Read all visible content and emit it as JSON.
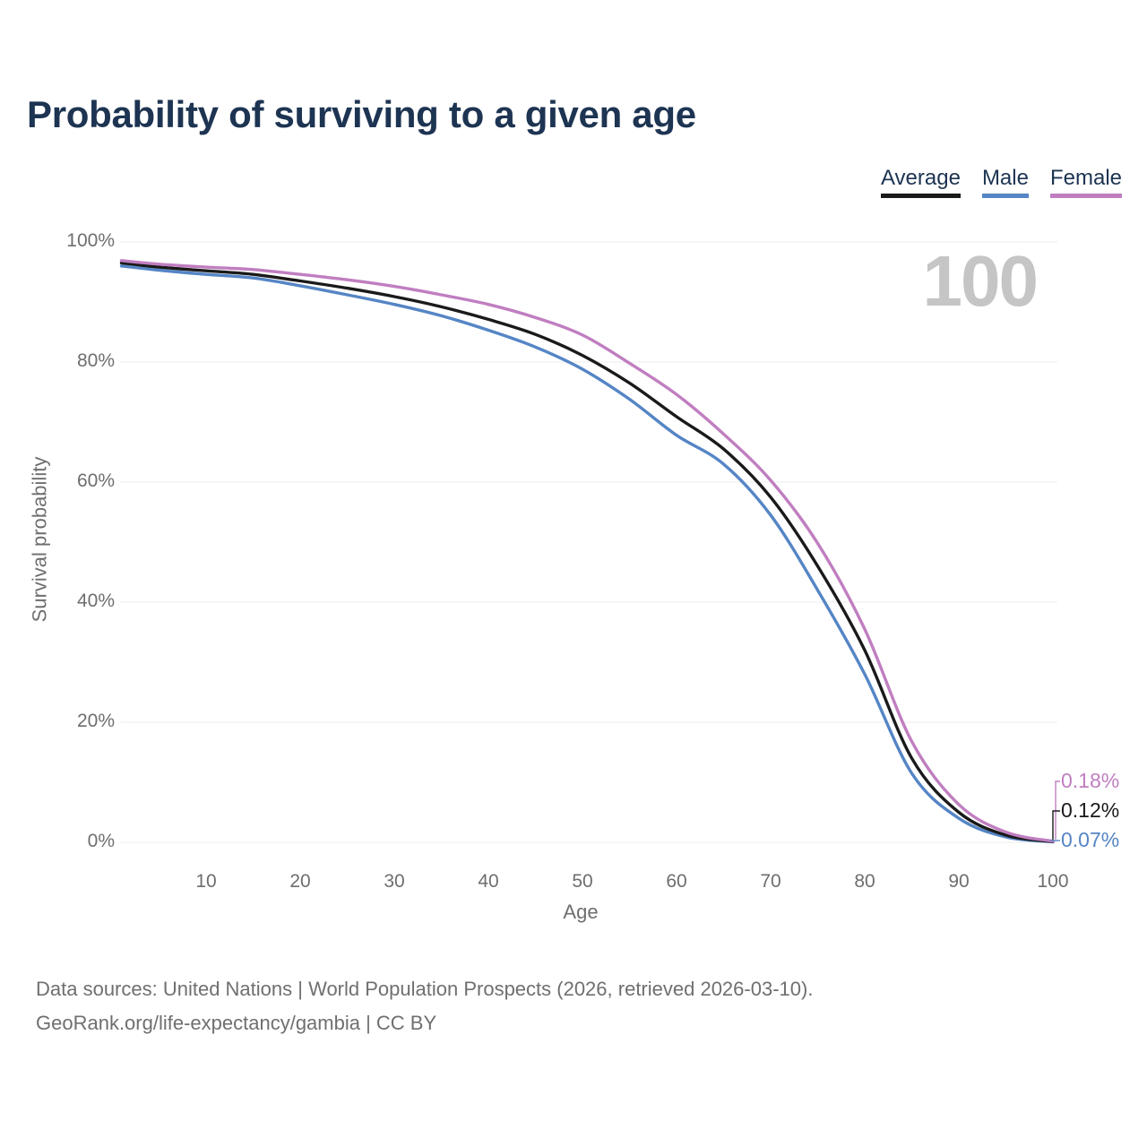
{
  "page": {
    "title": "Probability of surviving to a given age"
  },
  "legend": {
    "items": [
      {
        "label": "Average",
        "color": "#1a1a1a"
      },
      {
        "label": "Male",
        "color": "#5585c5"
      },
      {
        "label": "Female",
        "color": "#c07ec0"
      }
    ]
  },
  "corner_label": "100",
  "footer": {
    "line1": "Data sources: United Nations | World Population Prospects (2026, retrieved 2026-03-10).",
    "line2": "GeoRank.org/life-expectancy/gambia | CC BY"
  },
  "chart_data": {
    "type": "line",
    "title": "Probability of surviving to a given age",
    "xlabel": "Age",
    "ylabel": "Survival probability",
    "unit": "%",
    "xlim": [
      1,
      100
    ],
    "ylim": [
      0,
      100
    ],
    "grid": "horizontal",
    "legend_position": "top-right",
    "x_ticks": [
      10,
      20,
      30,
      40,
      50,
      60,
      70,
      80,
      90,
      100
    ],
    "y_ticks": [
      {
        "value": 0,
        "label": "0%"
      },
      {
        "value": 20,
        "label": "20%"
      },
      {
        "value": 40,
        "label": "40%"
      },
      {
        "value": 60,
        "label": "60%"
      },
      {
        "value": 80,
        "label": "80%"
      },
      {
        "value": 100,
        "label": "100%"
      }
    ],
    "annotation": "100",
    "x": [
      1,
      5,
      10,
      15,
      20,
      25,
      30,
      35,
      40,
      45,
      50,
      55,
      60,
      65,
      70,
      75,
      80,
      85,
      90,
      95,
      100
    ],
    "series": [
      {
        "name": "Average",
        "color": "#1a1a1a",
        "end_label": "0.12%",
        "values": [
          96.5,
          95.8,
          95.2,
          94.6,
          93.5,
          92.3,
          90.9,
          89.2,
          87.1,
          84.6,
          81.1,
          76.5,
          70.9,
          65.5,
          57.5,
          46.0,
          32.0,
          14.0,
          5.0,
          1.2,
          0.12
        ]
      },
      {
        "name": "Male",
        "color": "#5585c5",
        "end_label": "0.07%",
        "values": [
          96.0,
          95.3,
          94.6,
          94.0,
          92.7,
          91.2,
          89.6,
          87.7,
          85.3,
          82.5,
          78.8,
          73.8,
          67.8,
          63.0,
          54.5,
          42.0,
          28.0,
          11.5,
          4.0,
          0.9,
          0.07
        ]
      },
      {
        "name": "Female",
        "color": "#c07ec0",
        "end_label": "0.18%",
        "values": [
          96.9,
          96.3,
          95.8,
          95.4,
          94.6,
          93.7,
          92.6,
          91.2,
          89.6,
          87.4,
          84.5,
          79.8,
          74.6,
          68.0,
          60.3,
          49.8,
          35.5,
          16.8,
          6.3,
          1.7,
          0.18
        ]
      }
    ]
  }
}
